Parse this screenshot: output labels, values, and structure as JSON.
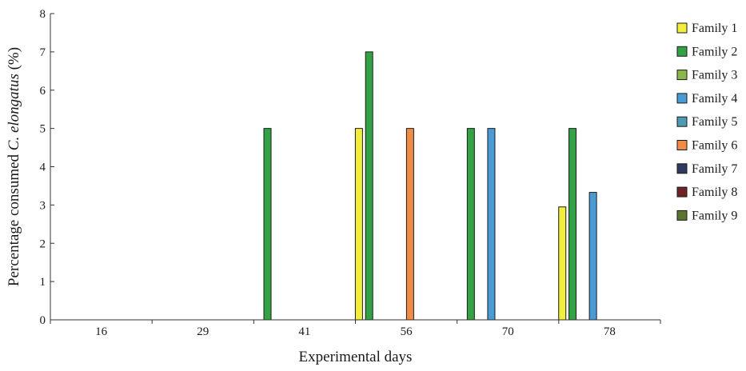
{
  "chart_data": {
    "type": "bar",
    "title": "",
    "xlabel": "Experimental days",
    "ylabel": {
      "prefix": "Percentage consumed ",
      "italic": "C. elongatus",
      "suffix": " (%)"
    },
    "ylim": [
      0,
      8
    ],
    "yticks": [
      "0",
      "1",
      "2",
      "3",
      "4",
      "5",
      "6",
      "7",
      "8"
    ],
    "categories": [
      "16",
      "29",
      "41",
      "56",
      "70",
      "78"
    ],
    "grid": false,
    "legend_position": "right",
    "series": [
      {
        "name": "Family 1",
        "color": "#f2ef3c",
        "values": [
          0,
          0,
          0,
          5,
          0,
          2.95
        ]
      },
      {
        "name": "Family 2",
        "color": "#33a245",
        "values": [
          0,
          0,
          5,
          7,
          5,
          5
        ]
      },
      {
        "name": "Family 3",
        "color": "#8db64a",
        "values": [
          0,
          0,
          0,
          0,
          0,
          0
        ]
      },
      {
        "name": "Family 4",
        "color": "#4a9ad4",
        "values": [
          0,
          0,
          0,
          0,
          5,
          3.33
        ]
      },
      {
        "name": "Family 5",
        "color": "#4e9bb1",
        "values": [
          0,
          0,
          0,
          0,
          0,
          0
        ]
      },
      {
        "name": "Family 6",
        "color": "#f08c45",
        "values": [
          0,
          0,
          0,
          5,
          0,
          0
        ]
      },
      {
        "name": "Family 7",
        "color": "#2e3a5e",
        "values": [
          0,
          0,
          0,
          0,
          0,
          0
        ]
      },
      {
        "name": "Family 8",
        "color": "#6e2424",
        "values": [
          0,
          0,
          0,
          0,
          0,
          0
        ]
      },
      {
        "name": "Family 9",
        "color": "#5a7431",
        "values": [
          0,
          0,
          0,
          0,
          0,
          0
        ]
      }
    ]
  }
}
